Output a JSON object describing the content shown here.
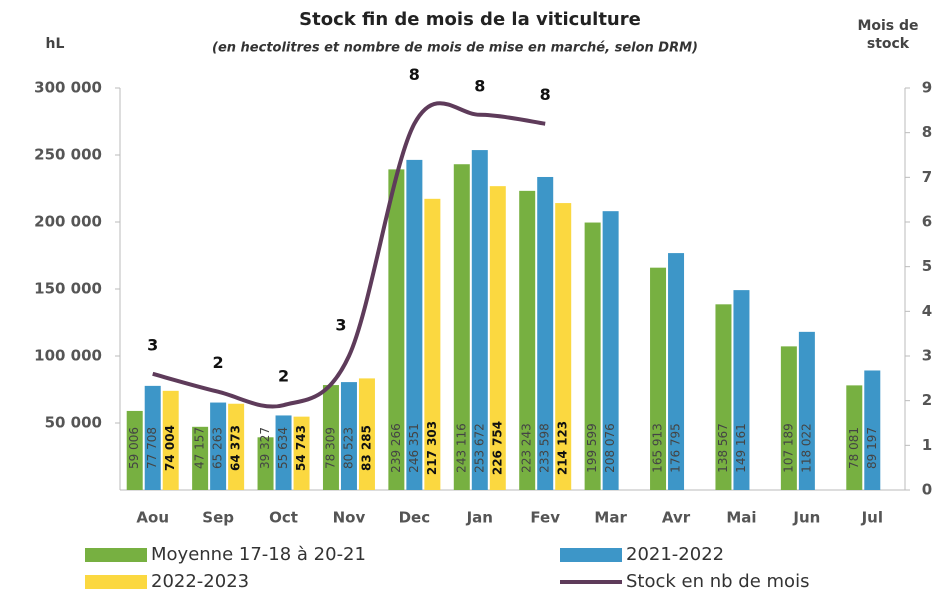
{
  "chart_data": {
    "type": "bar_line",
    "title": "Stock fin de mois de la viticulture",
    "subtitle": "(en hectolitres et nombre de mois de mise en marché, selon DRM)",
    "y_label": "hL",
    "y2_label": "Mois de stock",
    "categories": [
      "Aou",
      "Sep",
      "Oct",
      "Nov",
      "Dec",
      "Jan",
      "Fev",
      "Mar",
      "Avr",
      "Mai",
      "Jun",
      "Jul"
    ],
    "series": [
      {
        "name": "Moyenne 17-18 à 20-21",
        "color": "#77b041",
        "kind": "bar",
        "values": [
          59006,
          47157,
          39327,
          78309,
          239266,
          243116,
          223243,
          199599,
          165913,
          138567,
          107189,
          78081
        ],
        "value_labels": [
          "59 006",
          "47 157",
          "39 327",
          "78 309",
          "239 266",
          "243 116",
          "223 243",
          "199 599",
          "165 913",
          "138 567",
          "107 189",
          "78 081"
        ]
      },
      {
        "name": "2021-2022",
        "color": "#3d96c8",
        "kind": "bar",
        "values": [
          77708,
          65263,
          55634,
          80523,
          246351,
          253672,
          233598,
          208076,
          176795,
          149161,
          118022,
          89197
        ],
        "value_labels": [
          "77 708",
          "65 263",
          "55 634",
          "80 523",
          "246 351",
          "253 672",
          "233 598",
          "208 076",
          "176 795",
          "149 161",
          "118 022",
          "89 197"
        ]
      },
      {
        "name": "2022-2023",
        "color": "#fbd840",
        "kind": "bar",
        "values": [
          74004,
          64373,
          54743,
          83285,
          217303,
          226754,
          214123,
          null,
          null,
          null,
          null,
          null
        ],
        "value_labels": [
          "74 004",
          "64 373",
          "54 743",
          "83 285",
          "217 303",
          "226 754",
          "214 123",
          null,
          null,
          null,
          null,
          null
        ]
      },
      {
        "name": "Stock en nb de mois",
        "color": "#5e3b5a",
        "kind": "line",
        "axis": "y2",
        "values": [
          2.6,
          2.2,
          1.9,
          3,
          8.2,
          8.4,
          8.2,
          null,
          null,
          null,
          null,
          null
        ],
        "value_labels": [
          "3",
          "2",
          "2",
          "3",
          "8",
          "8",
          "8",
          null,
          null,
          null,
          null,
          null
        ]
      }
    ],
    "ylim": [
      0,
      300000
    ],
    "yticks": [
      {
        "value": 50000,
        "label": "50 000"
      },
      {
        "value": 100000,
        "label": "100 000"
      },
      {
        "value": 150000,
        "label": "150 000"
      },
      {
        "value": 200000,
        "label": "200 000"
      },
      {
        "value": 250000,
        "label": "250 000"
      },
      {
        "value": 300000,
        "label": "300 000"
      }
    ],
    "y2lim": [
      0,
      9
    ],
    "y2ticks": [
      0,
      1,
      2,
      3,
      4,
      5,
      6,
      7,
      8,
      9
    ]
  }
}
